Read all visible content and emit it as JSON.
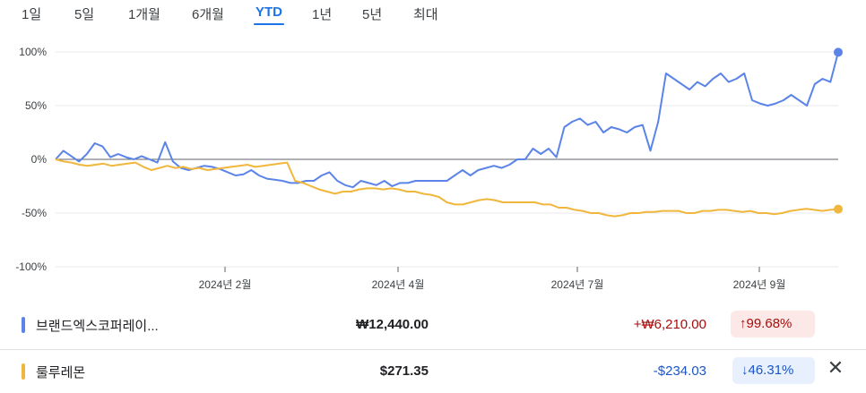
{
  "tabs": [
    {
      "label": "1일",
      "active": false
    },
    {
      "label": "5일",
      "active": false
    },
    {
      "label": "1개월",
      "active": false
    },
    {
      "label": "6개월",
      "active": false
    },
    {
      "label": "YTD",
      "active": true
    },
    {
      "label": "1년",
      "active": false
    },
    {
      "label": "5년",
      "active": false
    },
    {
      "label": "최대",
      "active": false
    }
  ],
  "chart_data": {
    "type": "line",
    "y_ticks": [
      "100%",
      "50%",
      "0%",
      "-50%",
      "-100%"
    ],
    "ylim": [
      -100,
      100
    ],
    "x_ticks": [
      "2024년 2월",
      "2024년 4월",
      "2024년 7월",
      "2024년 9월"
    ],
    "series": [
      {
        "name": "브랜드엑스코퍼레이...",
        "color": "#5b84e8",
        "values": [
          0,
          8,
          3,
          -2,
          5,
          15,
          12,
          2,
          5,
          2,
          0,
          3,
          0,
          -3,
          16,
          -2,
          -8,
          -10,
          -8,
          -6,
          -7,
          -9,
          -12,
          -15,
          -14,
          -10,
          -15,
          -18,
          -19,
          -20,
          -22,
          -22,
          -20,
          -20,
          -15,
          -12,
          -20,
          -24,
          -26,
          -20,
          -22,
          -24,
          -20,
          -25,
          -22,
          -22,
          -20,
          -20,
          -20,
          -20,
          -20,
          -15,
          -10,
          -15,
          -10,
          -8,
          -6,
          -8,
          -5,
          0,
          0,
          10,
          5,
          10,
          2,
          30,
          35,
          38,
          32,
          35,
          25,
          30,
          28,
          25,
          30,
          32,
          8,
          35,
          80,
          75,
          70,
          65,
          72,
          68,
          75,
          80,
          72,
          75,
          80,
          55,
          52,
          50,
          52,
          55,
          60,
          55,
          50,
          70,
          75,
          72,
          99.68
        ]
      },
      {
        "name": "룰루레몬",
        "color": "#f0b73c",
        "values": [
          0,
          -2,
          -3,
          -5,
          -6,
          -5,
          -4,
          -6,
          -5,
          -4,
          -3,
          -7,
          -10,
          -8,
          -6,
          -8,
          -7,
          -9,
          -8,
          -10,
          -9,
          -8,
          -7,
          -6,
          -5,
          -7,
          -6,
          -5,
          -4,
          -3,
          -20,
          -22,
          -25,
          -28,
          -30,
          -32,
          -30,
          -30,
          -28,
          -27,
          -27,
          -28,
          -27,
          -28,
          -30,
          -30,
          -32,
          -33,
          -35,
          -40,
          -42,
          -42,
          -40,
          -38,
          -37,
          -38,
          -40,
          -40,
          -40,
          -40,
          -40,
          -42,
          -42,
          -45,
          -45,
          -47,
          -48,
          -50,
          -50,
          -52,
          -53,
          -52,
          -50,
          -50,
          -49,
          -49,
          -48,
          -48,
          -48,
          -50,
          -50,
          -48,
          -48,
          -47,
          -47,
          -48,
          -49,
          -48,
          -50,
          -50,
          -51,
          -50,
          -48,
          -47,
          -46,
          -47,
          -48,
          -47,
          -46.31
        ]
      }
    ]
  },
  "rows": [
    {
      "name": "브랜드엑스코퍼레이...",
      "price": "₩12,440.00",
      "change": "+₩6,210.00",
      "change_color": "#a50e0e",
      "percent": "↑99.68%",
      "color": "#5b84e8"
    },
    {
      "name": "룰루레몬",
      "price": "$271.35",
      "change": "-$234.03",
      "change_color": "#1a56c8",
      "percent": "↓46.31%",
      "color": "#f0b73c"
    }
  ],
  "close_icon": "close-icon"
}
